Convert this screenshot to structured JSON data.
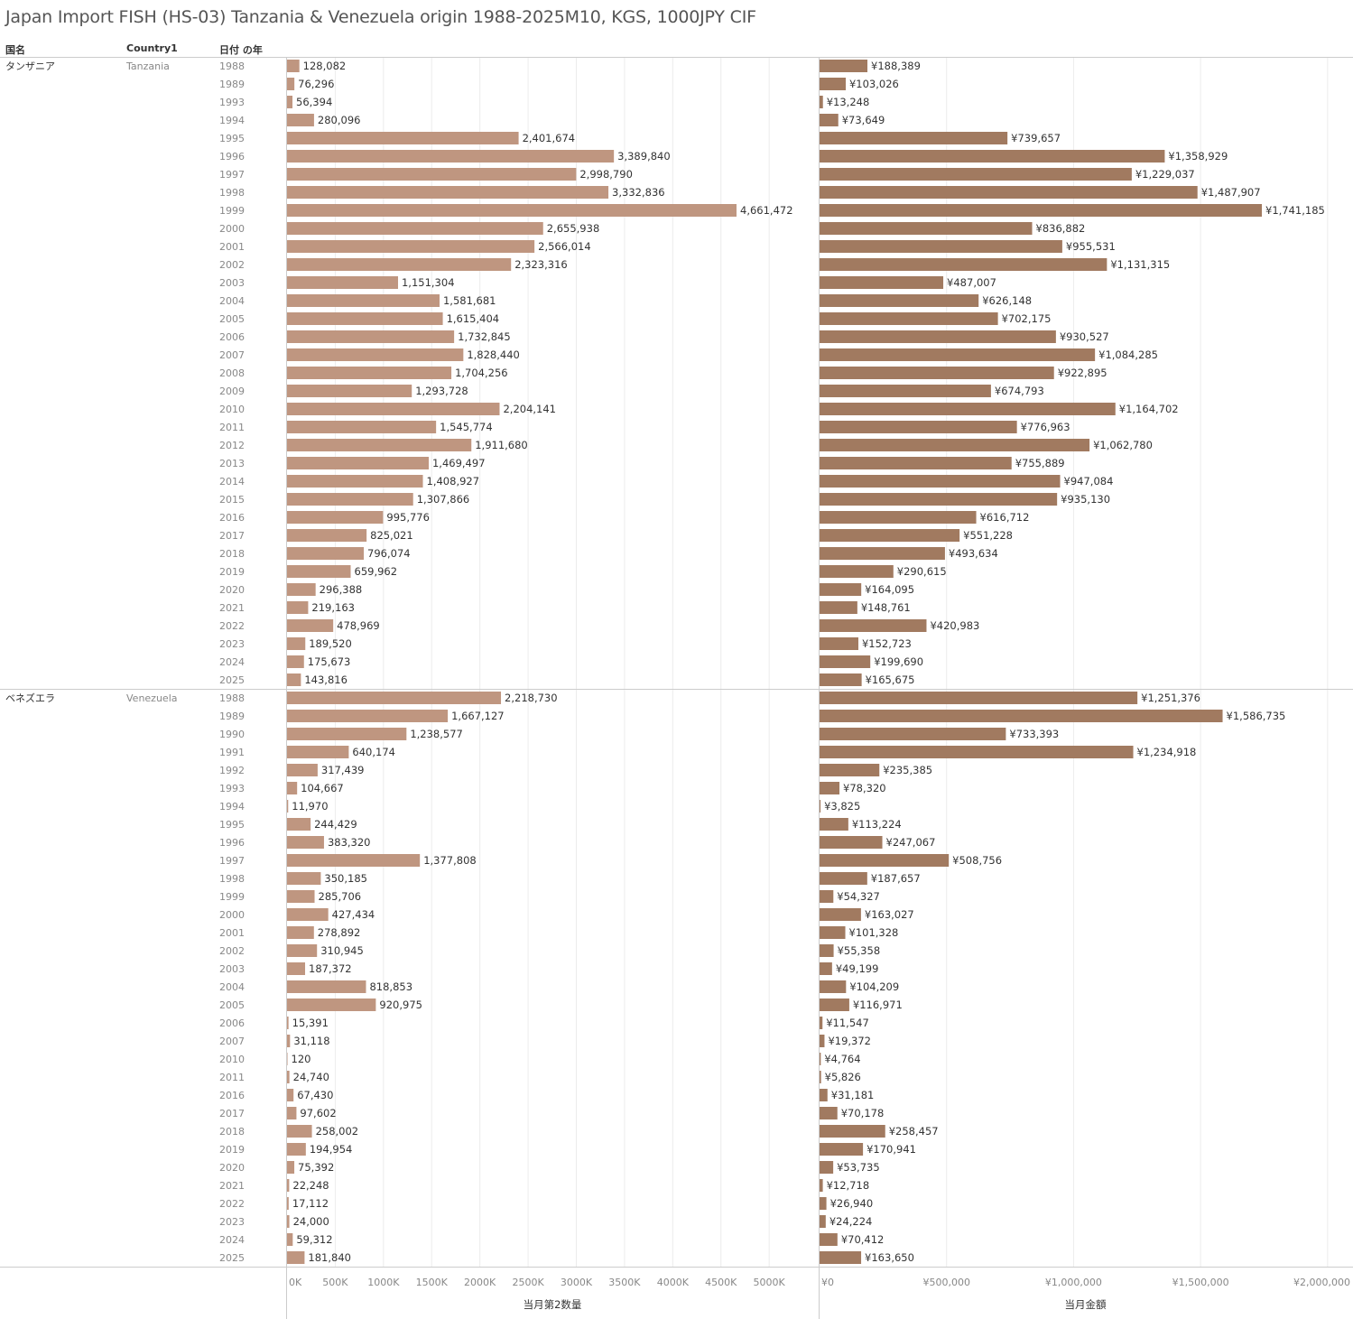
{
  "title": "Japan Import FISH (HS-03) Tanzania & Venezuela origin 1988-2025M10, KGS, 1000JPY CIF",
  "headers": {
    "country_jp": "国名",
    "country1": "Country1",
    "year": "日付 の年"
  },
  "colors": {
    "qty_bar": "#bf9680",
    "val_bar": "#a17a60",
    "grid": "#ececec",
    "rule": "#cccccc",
    "label": "#333333",
    "muted": "#888888"
  },
  "chart_data": [
    {
      "type": "bar",
      "orientation": "horizontal",
      "groups": [
        {
          "country_jp": "タンザニア",
          "country": "Tanzania",
          "years": [
            "1988",
            "1989",
            "1993",
            "1994",
            "1995",
            "1996",
            "1997",
            "1998",
            "1999",
            "2000",
            "2001",
            "2002",
            "2003",
            "2004",
            "2005",
            "2006",
            "2007",
            "2008",
            "2009",
            "2010",
            "2011",
            "2012",
            "2013",
            "2014",
            "2015",
            "2016",
            "2017",
            "2018",
            "2019",
            "2020",
            "2021",
            "2022",
            "2023",
            "2024",
            "2025"
          ],
          "quantity": [
            128082,
            76296,
            56394,
            280096,
            2401674,
            3389840,
            2998790,
            3332836,
            4661472,
            2655938,
            2566014,
            2323316,
            1151304,
            1581681,
            1615404,
            1732845,
            1828440,
            1704256,
            1293728,
            2204141,
            1545774,
            1911680,
            1469497,
            1408927,
            1307866,
            995776,
            825021,
            796074,
            659962,
            296388,
            219163,
            478969,
            189520,
            175673,
            143816
          ],
          "value": [
            188389,
            103026,
            13248,
            73649,
            739657,
            1358929,
            1229037,
            1487907,
            1741185,
            836882,
            955531,
            1131315,
            487007,
            626148,
            702175,
            930527,
            1084285,
            922895,
            674793,
            1164702,
            776963,
            1062780,
            755889,
            947084,
            935130,
            616712,
            551228,
            493634,
            290615,
            164095,
            148761,
            420983,
            152723,
            199690,
            165675
          ]
        },
        {
          "country_jp": "ベネズエラ",
          "country": "Venezuela",
          "years": [
            "1988",
            "1989",
            "1990",
            "1991",
            "1992",
            "1993",
            "1994",
            "1995",
            "1996",
            "1997",
            "1998",
            "1999",
            "2000",
            "2001",
            "2002",
            "2003",
            "2004",
            "2005",
            "2006",
            "2007",
            "2010",
            "2011",
            "2016",
            "2017",
            "2018",
            "2019",
            "2020",
            "2021",
            "2022",
            "2023",
            "2024",
            "2025"
          ],
          "quantity": [
            2218730,
            1667127,
            1238577,
            640174,
            317439,
            104667,
            11970,
            244429,
            383320,
            1377808,
            350185,
            285706,
            427434,
            278892,
            310945,
            187372,
            818853,
            920975,
            15391,
            31118,
            120,
            24740,
            67430,
            97602,
            258002,
            194954,
            75392,
            22248,
            17112,
            24000,
            59312,
            181840
          ],
          "value": [
            1251376,
            1586735,
            733393,
            1234918,
            235385,
            78320,
            3825,
            113224,
            247067,
            508756,
            187657,
            54327,
            163027,
            101328,
            55358,
            49199,
            104209,
            116971,
            11547,
            19372,
            4764,
            5826,
            31181,
            70178,
            258457,
            170941,
            53735,
            12718,
            26940,
            24224,
            70412,
            163650
          ]
        }
      ],
      "quantity_axis": {
        "label": "当月第2数量",
        "range": [
          0,
          5250000
        ],
        "ticks": [
          0,
          500000,
          1000000,
          1500000,
          2000000,
          2500000,
          3000000,
          3500000,
          4000000,
          4500000,
          5000000
        ],
        "tick_labels": [
          "0K",
          "500K",
          "1000K",
          "1500K",
          "2000K",
          "2500K",
          "3000K",
          "3500K",
          "4000K",
          "4500K",
          "5000K"
        ]
      },
      "value_axis": {
        "label": "当月金額",
        "range": [
          0,
          2000000
        ],
        "ticks": [
          0,
          500000,
          1000000,
          1500000,
          2000000
        ],
        "tick_labels": [
          "¥0",
          "¥500,000",
          "¥1,000,000",
          "¥1,500,000",
          "¥2,000,000"
        ]
      }
    }
  ]
}
